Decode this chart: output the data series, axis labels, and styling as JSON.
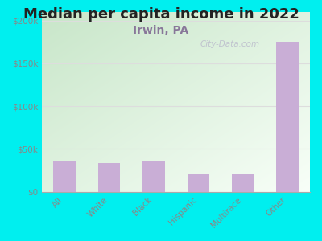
{
  "title": "Median per capita income in 2022",
  "subtitle": "Irwin, PA",
  "categories": [
    "All",
    "White",
    "Black",
    "Hispanic",
    "Multirace",
    "Other"
  ],
  "values": [
    35000,
    34000,
    36000,
    20000,
    21000,
    175000
  ],
  "bar_color": "#c9aed6",
  "title_fontsize": 13,
  "subtitle_fontsize": 10,
  "background_outer": "#00efef",
  "plot_bg_top_left": "#c8e6c9",
  "plot_bg_bottom_right": "#f1faf1",
  "ylim": [
    0,
    210000
  ],
  "yticks": [
    0,
    50000,
    100000,
    150000,
    200000
  ],
  "ytick_labels": [
    "$0",
    "$50k",
    "$100k",
    "$150k",
    "$200k"
  ],
  "watermark": "City-Data.com",
  "subtitle_color": "#887799",
  "tick_color": "#888888",
  "grid_color": "#dddddd"
}
